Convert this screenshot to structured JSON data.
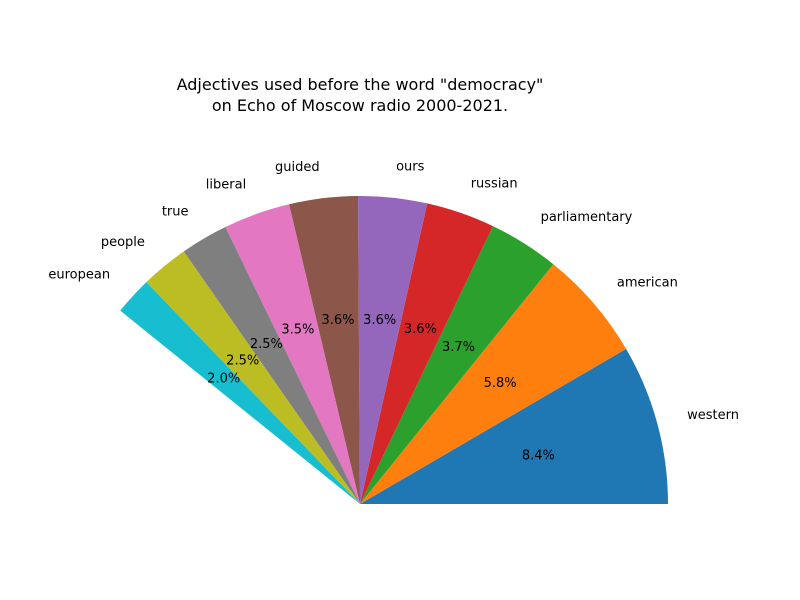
{
  "chart_data": {
    "type": "pie",
    "title": "Adjectives used before the word \"democracy\"",
    "subtitle": "on Echo of Moscow radio 2000-2021.",
    "slices": [
      {
        "label": "western",
        "value": 8.4,
        "display": "8.4%",
        "color": "#1f77b4"
      },
      {
        "label": "american",
        "value": 5.8,
        "display": "5.8%",
        "color": "#ff7f0e"
      },
      {
        "label": "parliamentary",
        "value": 3.7,
        "display": "3.7%",
        "color": "#2ca02c"
      },
      {
        "label": "russian",
        "value": 3.6,
        "display": "3.6%",
        "color": "#d62728"
      },
      {
        "label": "ours",
        "value": 3.6,
        "display": "3.6%",
        "color": "#9467bd"
      },
      {
        "label": "guided",
        "value": 3.6,
        "display": "3.6%",
        "color": "#8c564b"
      },
      {
        "label": "liberal",
        "value": 3.5,
        "display": "3.5%",
        "color": "#e377c2"
      },
      {
        "label": "true",
        "value": 2.5,
        "display": "2.5%",
        "color": "#7f7f7f"
      },
      {
        "label": "people",
        "value": 2.5,
        "display": "2.5%",
        "color": "#bcbd22"
      },
      {
        "label": "european",
        "value": 2.0,
        "display": "2.0%",
        "color": "#17becf"
      }
    ]
  }
}
